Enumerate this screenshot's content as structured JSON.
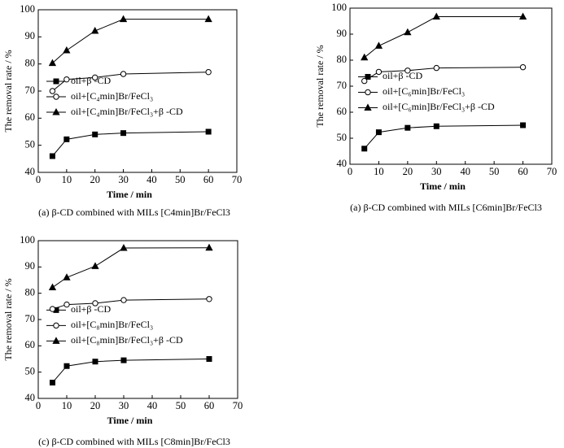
{
  "chart_data": [
    {
      "type": "line",
      "caption": "(a) β-CD combined with MILs [C4min]Br/FeCl3",
      "x_label": "Time / min",
      "y_label": "The removal rate / %",
      "x": [
        5,
        10,
        20,
        30,
        60
      ],
      "xlim": [
        0,
        70
      ],
      "xticks": [
        0,
        10,
        20,
        30,
        40,
        50,
        60,
        70
      ],
      "ylim": [
        40,
        100
      ],
      "yticks": [
        40,
        50,
        60,
        70,
        80,
        90,
        100
      ],
      "series": [
        {
          "name": "oil+β -CD",
          "color": "#000000",
          "marker": "square",
          "values": [
            46,
            52.2,
            54,
            54.5,
            55
          ]
        },
        {
          "name": "oil+[C₄min]Br/FeCl₃",
          "color": "#000000",
          "marker": "circle",
          "values": [
            70,
            74.3,
            75,
            76.3,
            77
          ]
        },
        {
          "name": "oil+[C₄min]Br/FeCl₃+β -CD",
          "color": "#000000",
          "marker": "triangle",
          "values": [
            80.3,
            85,
            92.2,
            96.5,
            96.5
          ]
        }
      ]
    },
    {
      "type": "line",
      "caption": "(a) β-CD combined with MILs [C6min]Br/FeCl3",
      "x_label": "Time / min",
      "y_label": "The removal rate / %",
      "x": [
        5,
        10,
        20,
        30,
        60
      ],
      "xlim": [
        0,
        70
      ],
      "xticks": [
        0,
        10,
        20,
        30,
        40,
        50,
        60,
        70
      ],
      "ylim": [
        40,
        100
      ],
      "yticks": [
        40,
        50,
        60,
        70,
        80,
        90,
        100
      ],
      "series": [
        {
          "name": "oil+β -CD",
          "color": "#000000",
          "marker": "square",
          "values": [
            46,
            52.3,
            54,
            54.6,
            55
          ]
        },
        {
          "name": "oil+[C₆min]Br/FeCl₃",
          "color": "#000000",
          "marker": "circle",
          "values": [
            72,
            75.5,
            76,
            77,
            77.3
          ]
        },
        {
          "name": "oil+[C₆min]Br/FeCl₃+β -CD",
          "color": "#000000",
          "marker": "triangle",
          "values": [
            81,
            85.5,
            90.7,
            96.7,
            96.7
          ]
        }
      ]
    },
    {
      "type": "line",
      "caption": "(c) β-CD combined with MILs [C8min]Br/FeCl3",
      "x_label": "Time / min",
      "y_label": "The removal rate / %",
      "x": [
        5,
        10,
        20,
        30,
        60
      ],
      "xlim": [
        0,
        70
      ],
      "xticks": [
        0,
        10,
        20,
        30,
        40,
        50,
        60,
        70
      ],
      "ylim": [
        40,
        100
      ],
      "yticks": [
        40,
        50,
        60,
        70,
        80,
        90,
        100
      ],
      "series": [
        {
          "name": "oil+β -CD",
          "color": "#000000",
          "marker": "square",
          "values": [
            46,
            52.3,
            54,
            54.5,
            55
          ]
        },
        {
          "name": "oil+[C₈min]Br/FeCl₃",
          "color": "#000000",
          "marker": "circle",
          "values": [
            74,
            75.7,
            76.2,
            77.4,
            77.8
          ]
        },
        {
          "name": "oil+[C₈min]Br/FeCl₃+β -CD",
          "color": "#000000",
          "marker": "triangle",
          "values": [
            82.2,
            86,
            90.3,
            97.2,
            97.3
          ]
        }
      ]
    }
  ]
}
